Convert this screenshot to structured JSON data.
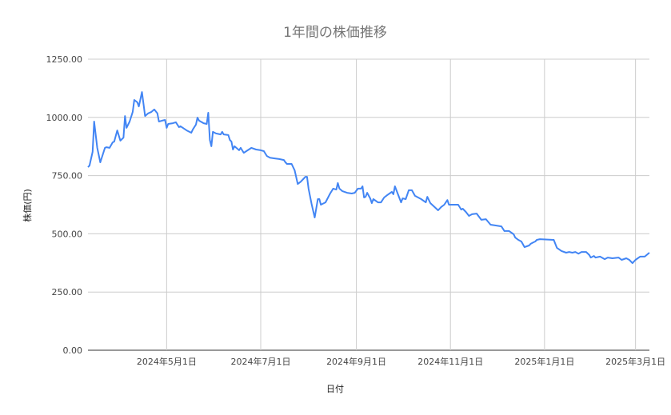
{
  "chart_data": {
    "type": "line",
    "title": "1年間の株価推移",
    "xlabel": "日付",
    "ylabel": "株価(円)",
    "ylim": [
      0,
      1250
    ],
    "xlim": [
      "2024-03-11",
      "2025-03-10"
    ],
    "grid": true,
    "legend": "none",
    "line_color": "#4285f4",
    "y_ticks": [
      {
        "value": 0,
        "label": "0.00"
      },
      {
        "value": 250,
        "label": "250.00"
      },
      {
        "value": 500,
        "label": "500.00"
      },
      {
        "value": 750,
        "label": "750.00"
      },
      {
        "value": 1000,
        "label": "1000.00"
      },
      {
        "value": 1250,
        "label": "1250.00"
      }
    ],
    "x_ticks": [
      {
        "date": "2024-05-01",
        "label": "2024年5月1日"
      },
      {
        "date": "2024-07-01",
        "label": "2024年7月1日"
      },
      {
        "date": "2024-09-01",
        "label": "2024年9月1日"
      },
      {
        "date": "2024-11-01",
        "label": "2024年11月1日"
      },
      {
        "date": "2025-01-01",
        "label": "2025年1月1日"
      },
      {
        "date": "2025-03-01",
        "label": "2025年3月1日"
      }
    ],
    "series": [
      {
        "points": [
          [
            "2024-03-11",
            786
          ],
          [
            "2024-03-12",
            793
          ],
          [
            "2024-03-14",
            852
          ],
          [
            "2024-03-15",
            982
          ],
          [
            "2024-03-17",
            869
          ],
          [
            "2024-03-19",
            807
          ],
          [
            "2024-03-22",
            869
          ],
          [
            "2024-03-23",
            872
          ],
          [
            "2024-03-25",
            869
          ],
          [
            "2024-03-27",
            893
          ],
          [
            "2024-03-28",
            896
          ],
          [
            "2024-03-30",
            944
          ],
          [
            "2024-04-01",
            900
          ],
          [
            "2024-04-03",
            913
          ],
          [
            "2024-04-04",
            1006
          ],
          [
            "2024-04-05",
            955
          ],
          [
            "2024-04-07",
            982
          ],
          [
            "2024-04-09",
            1023
          ],
          [
            "2024-04-10",
            1075
          ],
          [
            "2024-04-12",
            1065
          ],
          [
            "2024-04-13",
            1047
          ],
          [
            "2024-04-15",
            1109
          ],
          [
            "2024-04-17",
            1006
          ],
          [
            "2024-04-19",
            1017
          ],
          [
            "2024-04-21",
            1023
          ],
          [
            "2024-04-23",
            1034
          ],
          [
            "2024-04-25",
            1017
          ],
          [
            "2024-04-26",
            982
          ],
          [
            "2024-04-28",
            986
          ],
          [
            "2024-04-30",
            989
          ],
          [
            "2024-05-01",
            955
          ],
          [
            "2024-05-02",
            972
          ],
          [
            "2024-05-05",
            975
          ],
          [
            "2024-05-07",
            979
          ],
          [
            "2024-05-09",
            958
          ],
          [
            "2024-05-10",
            962
          ],
          [
            "2024-05-14",
            944
          ],
          [
            "2024-05-17",
            934
          ],
          [
            "2024-05-18",
            948
          ],
          [
            "2024-05-20",
            969
          ],
          [
            "2024-05-21",
            999
          ],
          [
            "2024-05-22",
            986
          ],
          [
            "2024-05-25",
            975
          ],
          [
            "2024-05-27",
            972
          ],
          [
            "2024-05-28",
            1020
          ],
          [
            "2024-05-29",
            903
          ],
          [
            "2024-05-30",
            876
          ],
          [
            "2024-05-31",
            938
          ],
          [
            "2024-06-02",
            931
          ],
          [
            "2024-06-05",
            927
          ],
          [
            "2024-06-06",
            938
          ],
          [
            "2024-06-07",
            927
          ],
          [
            "2024-06-10",
            924
          ],
          [
            "2024-06-11",
            903
          ],
          [
            "2024-06-12",
            896
          ],
          [
            "2024-06-13",
            862
          ],
          [
            "2024-06-14",
            876
          ],
          [
            "2024-06-17",
            859
          ],
          [
            "2024-06-18",
            869
          ],
          [
            "2024-06-20",
            848
          ],
          [
            "2024-06-21",
            852
          ],
          [
            "2024-06-25",
            869
          ],
          [
            "2024-06-28",
            862
          ],
          [
            "2024-07-01",
            859
          ],
          [
            "2024-07-03",
            855
          ],
          [
            "2024-07-05",
            834
          ],
          [
            "2024-07-07",
            827
          ],
          [
            "2024-07-10",
            824
          ],
          [
            "2024-07-13",
            821
          ],
          [
            "2024-07-16",
            817
          ],
          [
            "2024-07-17",
            807
          ],
          [
            "2024-07-18",
            800
          ],
          [
            "2024-07-21",
            800
          ],
          [
            "2024-07-23",
            773
          ],
          [
            "2024-07-25",
            714
          ],
          [
            "2024-07-27",
            724
          ],
          [
            "2024-07-30",
            745
          ],
          [
            "2024-07-31",
            745
          ],
          [
            "2024-08-01",
            694
          ],
          [
            "2024-08-03",
            628
          ],
          [
            "2024-08-05",
            570
          ],
          [
            "2024-08-07",
            649
          ],
          [
            "2024-08-08",
            649
          ],
          [
            "2024-08-09",
            625
          ],
          [
            "2024-08-12",
            635
          ],
          [
            "2024-08-15",
            673
          ],
          [
            "2024-08-17",
            694
          ],
          [
            "2024-08-19",
            690
          ],
          [
            "2024-08-20",
            718
          ],
          [
            "2024-08-21",
            694
          ],
          [
            "2024-08-23",
            683
          ],
          [
            "2024-08-26",
            676
          ],
          [
            "2024-08-29",
            673
          ],
          [
            "2024-08-31",
            676
          ],
          [
            "2024-09-02",
            694
          ],
          [
            "2024-09-04",
            694
          ],
          [
            "2024-09-05",
            704
          ],
          [
            "2024-09-06",
            656
          ],
          [
            "2024-09-07",
            659
          ],
          [
            "2024-09-08",
            676
          ],
          [
            "2024-09-10",
            652
          ],
          [
            "2024-09-11",
            632
          ],
          [
            "2024-09-12",
            649
          ],
          [
            "2024-09-15",
            635
          ],
          [
            "2024-09-17",
            635
          ],
          [
            "2024-09-19",
            656
          ],
          [
            "2024-09-21",
            666
          ],
          [
            "2024-09-24",
            680
          ],
          [
            "2024-09-25",
            670
          ],
          [
            "2024-09-26",
            704
          ],
          [
            "2024-09-30",
            635
          ],
          [
            "2024-10-01",
            652
          ],
          [
            "2024-10-03",
            649
          ],
          [
            "2024-10-05",
            687
          ],
          [
            "2024-10-07",
            687
          ],
          [
            "2024-10-09",
            663
          ],
          [
            "2024-10-13",
            649
          ],
          [
            "2024-10-16",
            635
          ],
          [
            "2024-10-17",
            659
          ],
          [
            "2024-10-19",
            632
          ],
          [
            "2024-10-24",
            601
          ],
          [
            "2024-10-26",
            615
          ],
          [
            "2024-10-28",
            625
          ],
          [
            "2024-10-30",
            645
          ],
          [
            "2024-10-31",
            625
          ],
          [
            "2024-11-06",
            625
          ],
          [
            "2024-11-08",
            604
          ],
          [
            "2024-11-09",
            608
          ],
          [
            "2024-11-11",
            594
          ],
          [
            "2024-11-13",
            577
          ],
          [
            "2024-11-15",
            584
          ],
          [
            "2024-11-18",
            587
          ],
          [
            "2024-11-21",
            560
          ],
          [
            "2024-11-24",
            563
          ],
          [
            "2024-11-27",
            539
          ],
          [
            "2024-11-30",
            536
          ],
          [
            "2024-12-04",
            532
          ],
          [
            "2024-12-06",
            512
          ],
          [
            "2024-12-09",
            512
          ],
          [
            "2024-12-12",
            498
          ],
          [
            "2024-12-13",
            484
          ],
          [
            "2024-12-15",
            474
          ],
          [
            "2024-12-17",
            467
          ],
          [
            "2024-12-19",
            443
          ],
          [
            "2024-12-22",
            450
          ],
          [
            "2024-12-23",
            457
          ],
          [
            "2024-12-25",
            464
          ],
          [
            "2024-12-26",
            467
          ],
          [
            "2024-12-27",
            474
          ],
          [
            "2024-12-29",
            477
          ],
          [
            "2025-01-07",
            474
          ],
          [
            "2025-01-09",
            440
          ],
          [
            "2025-01-12",
            426
          ],
          [
            "2025-01-15",
            419
          ],
          [
            "2025-01-17",
            422
          ],
          [
            "2025-01-19",
            419
          ],
          [
            "2025-01-21",
            422
          ],
          [
            "2025-01-23",
            415
          ],
          [
            "2025-01-25",
            422
          ],
          [
            "2025-01-28",
            422
          ],
          [
            "2025-01-30",
            409
          ],
          [
            "2025-01-31",
            398
          ],
          [
            "2025-02-02",
            405
          ],
          [
            "2025-02-03",
            398
          ],
          [
            "2025-02-06",
            402
          ],
          [
            "2025-02-09",
            391
          ],
          [
            "2025-02-11",
            398
          ],
          [
            "2025-02-14",
            395
          ],
          [
            "2025-02-18",
            398
          ],
          [
            "2025-02-20",
            388
          ],
          [
            "2025-02-23",
            395
          ],
          [
            "2025-02-25",
            388
          ],
          [
            "2025-02-27",
            374
          ],
          [
            "2025-03-01",
            388
          ],
          [
            "2025-03-04",
            402
          ],
          [
            "2025-03-07",
            402
          ],
          [
            "2025-03-10",
            419
          ]
        ]
      }
    ]
  }
}
